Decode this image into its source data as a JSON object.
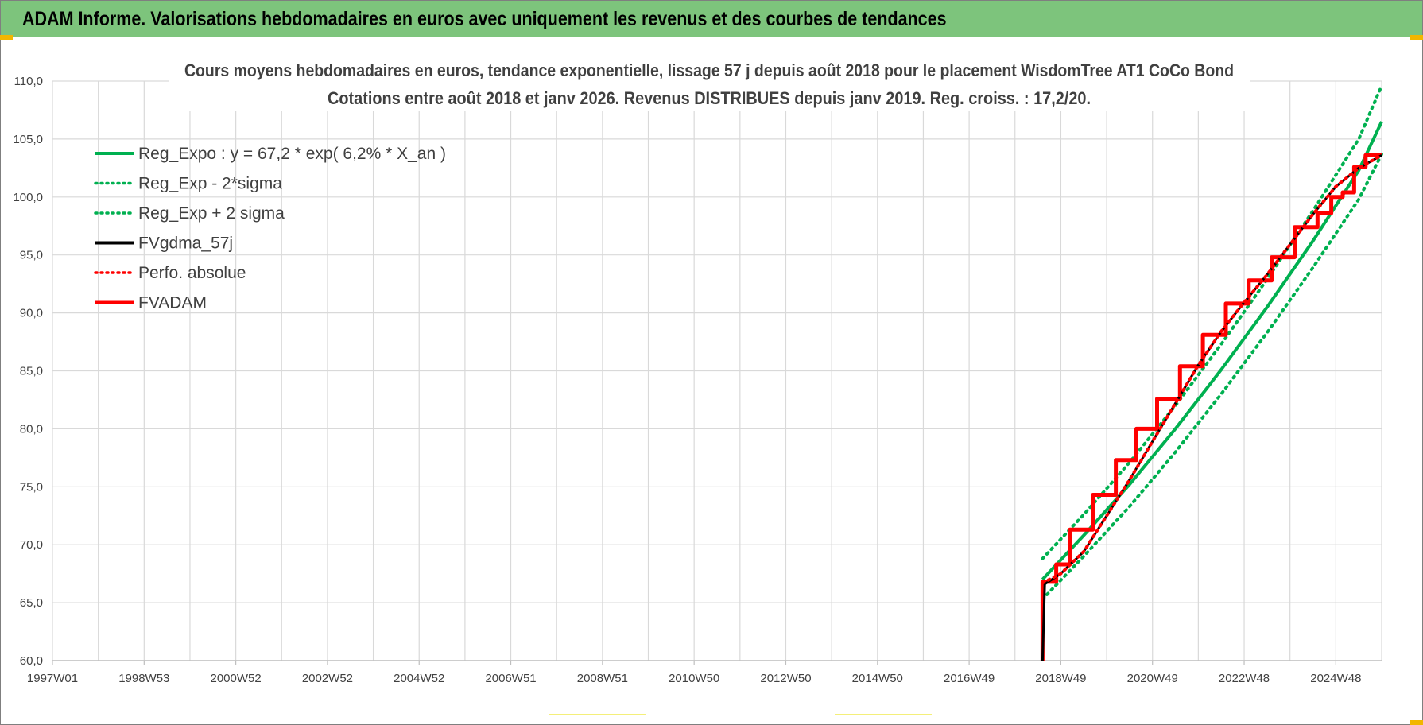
{
  "header": {
    "title": "ADAM Informe. Valorisations hebdomadaires en euros avec uniquement les revenus et des courbes de tendances"
  },
  "colors": {
    "header_bg": "#7dc47c",
    "green": "#00b050",
    "black": "#000000",
    "red": "#ff0000",
    "grid": "#d9d9d9",
    "text": "#404040"
  },
  "chart_data": {
    "type": "line",
    "title": [
      "Cours moyens hebdomadaires en euros, tendance exponentielle, lissage 57 j depuis août 2018 pour le placement WisdomTree AT1 CoCo Bond",
      "Cotations entre août 2018 et janv 2026. Revenus DISTRIBUES depuis janv 2019. Reg. croiss. : 17,2/20."
    ],
    "ylim": [
      60,
      110
    ],
    "y_ticks": [
      "60,0",
      "65,0",
      "70,0",
      "75,0",
      "80,0",
      "85,0",
      "90,0",
      "95,0",
      "100,0",
      "105,0",
      "110,0"
    ],
    "xlim": [
      1997.0,
      2026.0
    ],
    "x_ticks": [
      {
        "label": "1997W01",
        "x": 1997.0
      },
      {
        "label": "1998W53",
        "x": 1999.0
      },
      {
        "label": "2000W52",
        "x": 2001.0
      },
      {
        "label": "2002W52",
        "x": 2003.0
      },
      {
        "label": "2004W52",
        "x": 2005.0
      },
      {
        "label": "2006W51",
        "x": 2007.0
      },
      {
        "label": "2008W51",
        "x": 2009.0
      },
      {
        "label": "2010W50",
        "x": 2011.0
      },
      {
        "label": "2012W50",
        "x": 2013.0
      },
      {
        "label": "2014W50",
        "x": 2015.0
      },
      {
        "label": "2016W49",
        "x": 2017.0
      },
      {
        "label": "2018W49",
        "x": 2019.0
      },
      {
        "label": "2020W49",
        "x": 2021.0
      },
      {
        "label": "2022W48",
        "x": 2023.0
      },
      {
        "label": "2024W48",
        "x": 2025.0
      }
    ],
    "legend_position": "top-left",
    "series": [
      {
        "name": "Reg_Expo : y = 67,2 * exp( 6,2% * X_an )",
        "color": "#00b050",
        "style": "solid",
        "x": [
          2018.6,
          2019.5,
          2020.5,
          2021.5,
          2022.5,
          2023.5,
          2024.5,
          2025.5,
          2026.0
        ],
        "y": [
          67.0,
          70.8,
          75.2,
          80.0,
          85.1,
          90.5,
          96.2,
          102.3,
          106.5
        ]
      },
      {
        "name": "Reg_Exp - 2*sigma",
        "color": "#00b050",
        "style": "dotted",
        "x": [
          2018.6,
          2019.5,
          2020.5,
          2021.5,
          2022.5,
          2023.5,
          2024.5,
          2025.5,
          2026.0
        ],
        "y": [
          65.3,
          69.0,
          73.3,
          78.0,
          83.0,
          88.3,
          93.9,
          99.8,
          103.7
        ]
      },
      {
        "name": "Reg_Exp + 2 sigma",
        "color": "#00b050",
        "style": "dotted",
        "x": [
          2018.6,
          2019.5,
          2020.5,
          2021.5,
          2022.5,
          2023.5,
          2024.5,
          2025.5,
          2026.0
        ],
        "y": [
          68.8,
          72.6,
          77.1,
          82.0,
          87.3,
          92.9,
          98.8,
          105.0,
          109.6
        ]
      },
      {
        "name": "FVgdma_57j",
        "color": "#000000",
        "style": "solid",
        "x": [
          2018.6,
          2018.65,
          2019.0,
          2019.5,
          2020.0,
          2020.5,
          2021.0,
          2021.5,
          2022.0,
          2022.5,
          2023.0,
          2023.5,
          2024.0,
          2024.5,
          2025.0,
          2025.5,
          2026.0
        ],
        "y": [
          60.0,
          66.6,
          67.5,
          69.4,
          72.5,
          75.6,
          78.9,
          82.2,
          85.5,
          88.4,
          90.9,
          93.3,
          95.9,
          98.5,
          100.9,
          102.5,
          103.6
        ]
      },
      {
        "name": "Perfo. absolue",
        "color": "#ff0000",
        "style": "dotted",
        "x": [
          2018.6,
          2019.0,
          2019.5,
          2020.0,
          2020.5,
          2021.0,
          2021.5,
          2022.0,
          2022.5,
          2023.0,
          2023.5,
          2024.0,
          2024.5,
          2025.0,
          2025.5,
          2026.0
        ],
        "y": [
          66.7,
          67.5,
          69.4,
          72.5,
          75.6,
          78.9,
          82.2,
          85.5,
          88.4,
          90.9,
          93.3,
          95.9,
          98.5,
          100.9,
          102.5,
          103.6
        ]
      },
      {
        "name": "FVADAM",
        "color": "#ff0000",
        "style": "solid",
        "x": [
          2018.6,
          2018.6,
          2018.9,
          2018.9,
          2019.2,
          2019.2,
          2019.7,
          2019.7,
          2020.2,
          2020.2,
          2020.65,
          2020.65,
          2021.1,
          2021.1,
          2021.6,
          2021.6,
          2022.1,
          2022.1,
          2022.6,
          2022.6,
          2023.1,
          2023.1,
          2023.6,
          2023.6,
          2024.1,
          2024.1,
          2024.6,
          2024.6,
          2024.9,
          2024.9,
          2025.15,
          2025.15,
          2025.4,
          2025.4,
          2025.65,
          2025.65,
          2026.0
        ],
        "y": [
          60.0,
          66.8,
          66.8,
          68.3,
          68.3,
          71.3,
          71.3,
          74.3,
          74.3,
          77.3,
          77.3,
          80.0,
          80.0,
          82.6,
          82.6,
          85.4,
          85.4,
          88.1,
          88.1,
          90.8,
          90.8,
          92.8,
          92.8,
          94.8,
          94.8,
          97.4,
          97.4,
          98.6,
          98.6,
          100.0,
          100.0,
          100.4,
          100.4,
          102.6,
          102.6,
          103.6,
          103.6
        ]
      }
    ]
  }
}
